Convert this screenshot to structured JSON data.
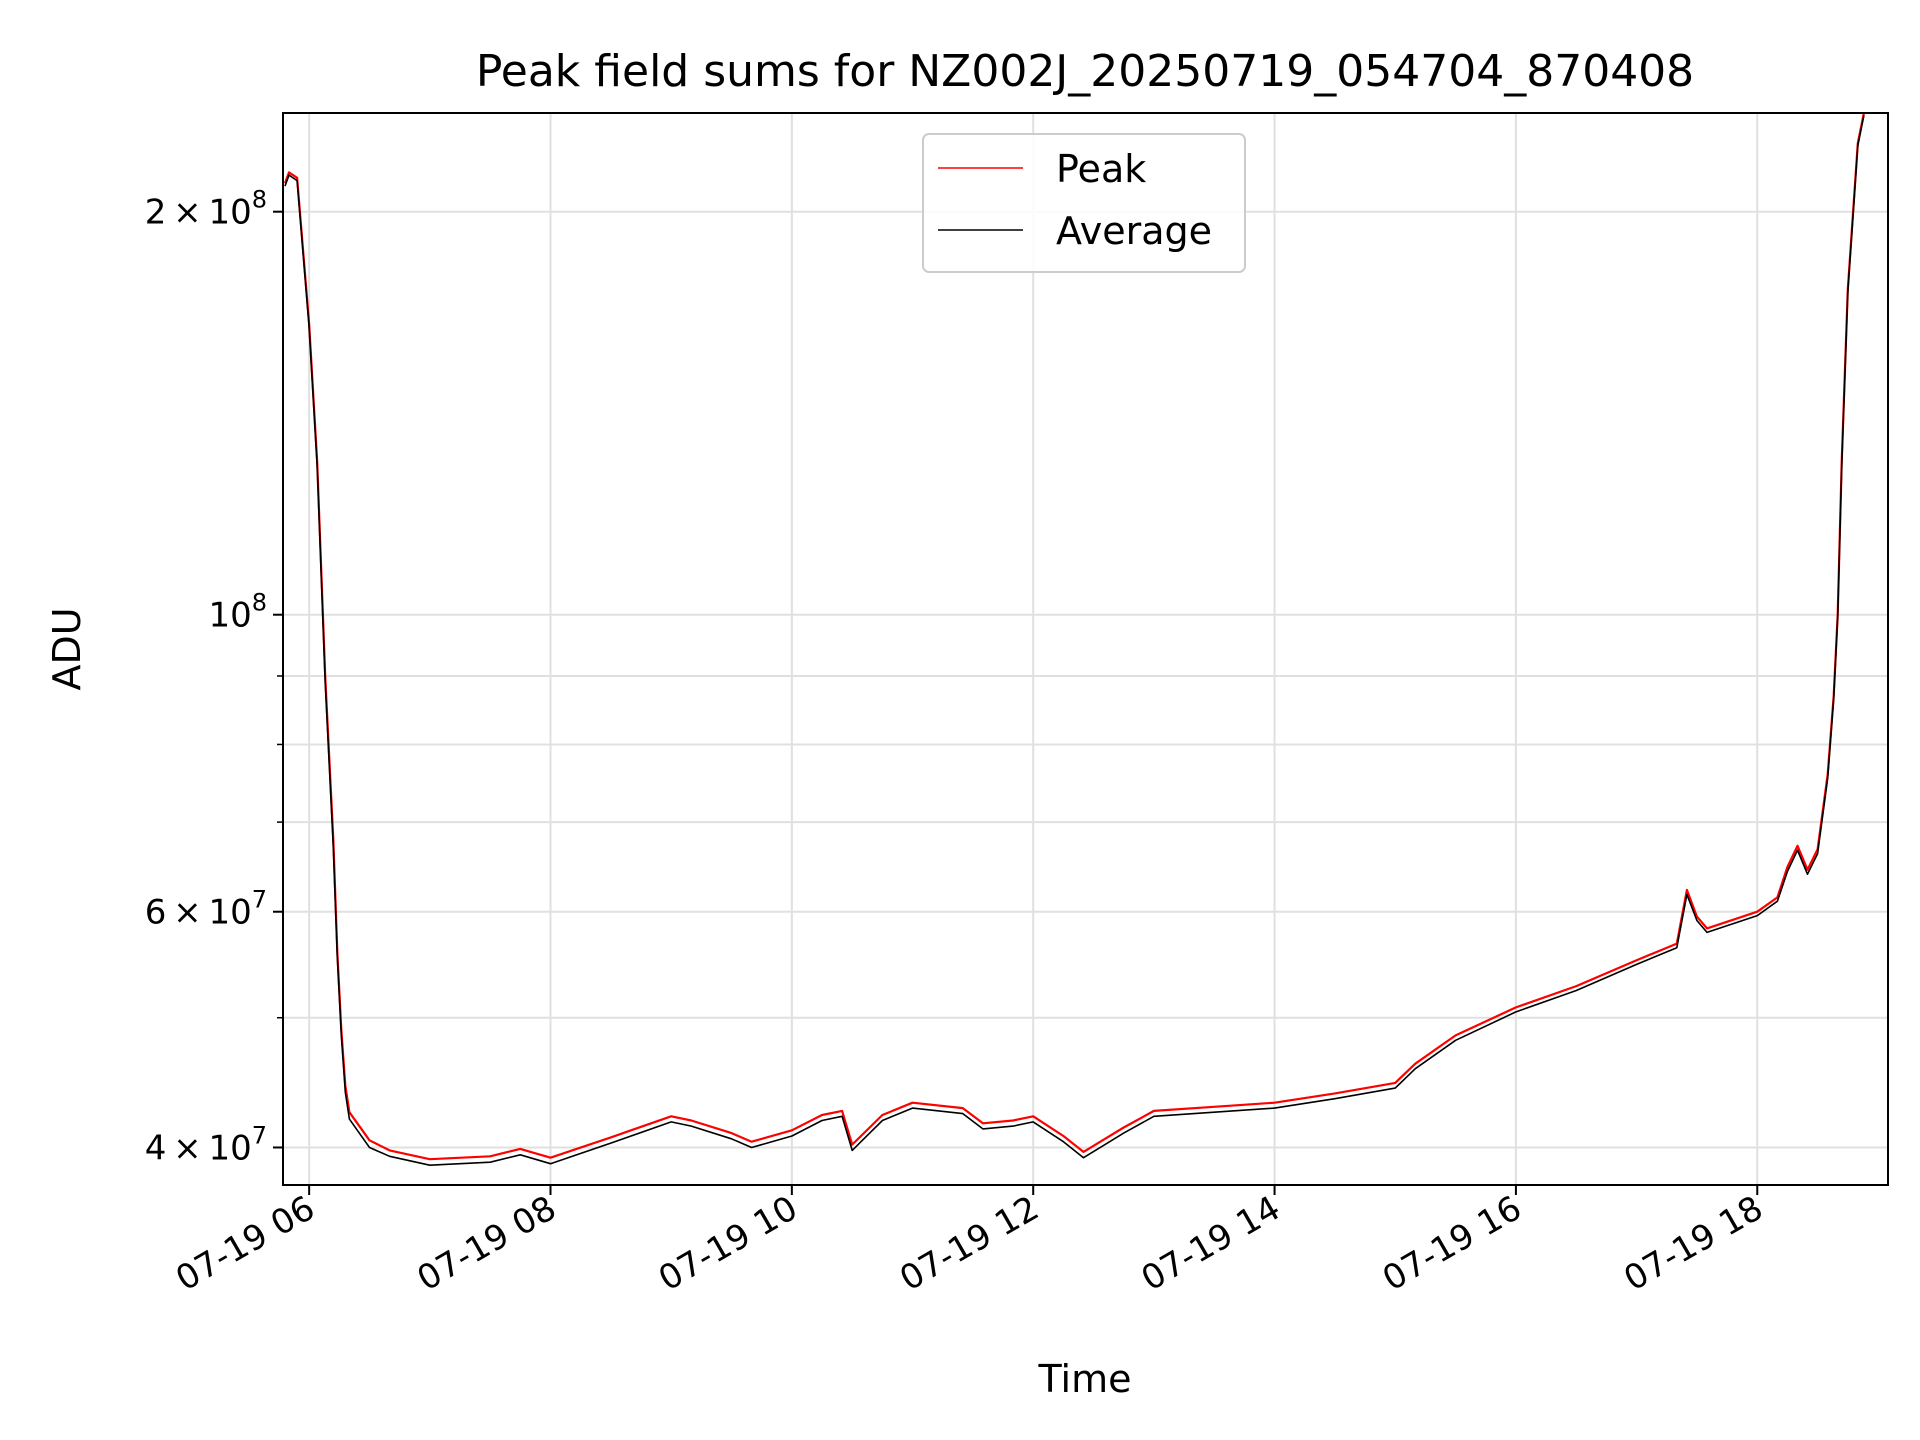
{
  "chart_data": {
    "type": "line",
    "title": "Peak field sums for NZ002J_20250719_054704_870408",
    "xlabel": "Time",
    "ylabel": "ADU",
    "yscale": "log",
    "ylim": [
      37500000,
      237000000
    ],
    "xlim": [
      "2025-07-19 05:47",
      "2025-07-19 19:05"
    ],
    "grid": true,
    "legend_position": "upper center",
    "x_tick_labels": [
      "07-19 06",
      "07-19 08",
      "07-19 10",
      "07-19 12",
      "07-19 14",
      "07-19 16",
      "07-19 18"
    ],
    "y_tick_labels": [
      {
        "value": 200000000,
        "mantissa": "2",
        "exponent": "8"
      },
      {
        "value": 100000000,
        "mantissa": "",
        "exponent": "8"
      },
      {
        "value": 60000000,
        "mantissa": "6",
        "exponent": "7"
      },
      {
        "value": 40000000,
        "mantissa": "4",
        "exponent": "7"
      }
    ],
    "y_minor_ticks": [
      50000000,
      70000000,
      80000000,
      90000000
    ],
    "x": [
      "2025-07-19 05:48",
      "2025-07-19 05:50",
      "2025-07-19 05:54",
      "2025-07-19 06:00",
      "2025-07-19 06:04",
      "2025-07-19 06:08",
      "2025-07-19 06:12",
      "2025-07-19 06:14",
      "2025-07-19 06:16",
      "2025-07-19 06:18",
      "2025-07-19 06:20",
      "2025-07-19 06:30",
      "2025-07-19 06:40",
      "2025-07-19 07:00",
      "2025-07-19 07:30",
      "2025-07-19 07:45",
      "2025-07-19 08:00",
      "2025-07-19 08:30",
      "2025-07-19 09:00",
      "2025-07-19 09:10",
      "2025-07-19 09:30",
      "2025-07-19 09:40",
      "2025-07-19 10:00",
      "2025-07-19 10:15",
      "2025-07-19 10:25",
      "2025-07-19 10:30",
      "2025-07-19 10:45",
      "2025-07-19 11:00",
      "2025-07-19 11:25",
      "2025-07-19 11:35",
      "2025-07-19 11:50",
      "2025-07-19 12:00",
      "2025-07-19 12:15",
      "2025-07-19 12:25",
      "2025-07-19 12:45",
      "2025-07-19 13:00",
      "2025-07-19 13:30",
      "2025-07-19 14:00",
      "2025-07-19 14:30",
      "2025-07-19 15:00",
      "2025-07-19 15:10",
      "2025-07-19 15:30",
      "2025-07-19 16:00",
      "2025-07-19 16:30",
      "2025-07-19 17:00",
      "2025-07-19 17:20",
      "2025-07-19 17:25",
      "2025-07-19 17:30",
      "2025-07-19 17:35",
      "2025-07-19 18:00",
      "2025-07-19 18:10",
      "2025-07-19 18:15",
      "2025-07-19 18:20",
      "2025-07-19 18:25",
      "2025-07-19 18:30",
      "2025-07-19 18:35",
      "2025-07-19 18:38",
      "2025-07-19 18:40",
      "2025-07-19 18:42",
      "2025-07-19 18:45",
      "2025-07-19 18:50",
      "2025-07-19 18:53"
    ],
    "series": [
      {
        "name": "Peak",
        "color": "#ff0000",
        "values": [
          210000000,
          214000000,
          212000000,
          165000000,
          130000000,
          90000000,
          68000000,
          56000000,
          49000000,
          44500000,
          42500000,
          40500000,
          39800000,
          39200000,
          39400000,
          39900000,
          39300000,
          40700000,
          42200000,
          41900000,
          41000000,
          40400000,
          41200000,
          42300000,
          42600000,
          40200000,
          42300000,
          43200000,
          42800000,
          41700000,
          41900000,
          42200000,
          40800000,
          39700000,
          41400000,
          42600000,
          42900000,
          43200000,
          43900000,
          44700000,
          46200000,
          48500000,
          50900000,
          52800000,
          55200000,
          56800000,
          62300000,
          59500000,
          58300000,
          60000000,
          61500000,
          64800000,
          67200000,
          64500000,
          66800000,
          76000000,
          87000000,
          100000000,
          130000000,
          175000000,
          225000000,
          237000000
        ]
      },
      {
        "name": "Average",
        "color": "#000000",
        "values": [
          209000000,
          213000000,
          211000000,
          164000000,
          129000000,
          89000000,
          67000000,
          55500000,
          48500000,
          44000000,
          42000000,
          40000000,
          39400000,
          38800000,
          39000000,
          39500000,
          38900000,
          40300000,
          41800000,
          41500000,
          40600000,
          40000000,
          40800000,
          41900000,
          42200000,
          39800000,
          41900000,
          42800000,
          42400000,
          41300000,
          41500000,
          41800000,
          40400000,
          39300000,
          41000000,
          42200000,
          42500000,
          42800000,
          43500000,
          44300000,
          45800000,
          48100000,
          50500000,
          52400000,
          54800000,
          56400000,
          61800000,
          59100000,
          57900000,
          59600000,
          61100000,
          64300000,
          66700000,
          64000000,
          66300000,
          75500000,
          86500000,
          99500000,
          129000000,
          174000000,
          224000000,
          236000000
        ]
      }
    ]
  }
}
